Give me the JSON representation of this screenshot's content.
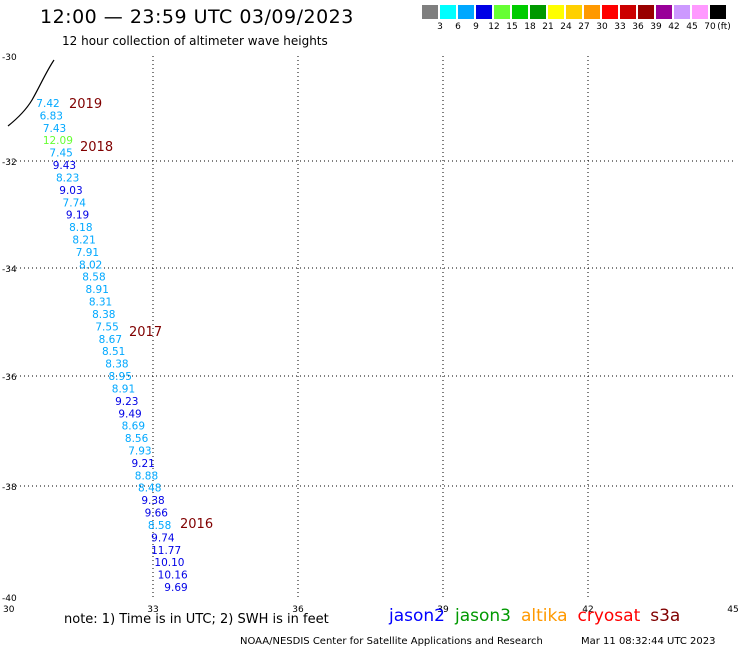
{
  "header": {
    "title": "12:00 — 23:59 UTC 03/09/2023",
    "subtitle": "12 hour collection of altimeter wave heights"
  },
  "legend": {
    "swatches": [
      {
        "color": "#7f7f7f",
        "label": "3"
      },
      {
        "color": "#00ffff",
        "label": "6"
      },
      {
        "color": "#00a8ff",
        "label": "9"
      },
      {
        "color": "#0000e6",
        "label": "12"
      },
      {
        "color": "#66ff33",
        "label": "15"
      },
      {
        "color": "#00cc00",
        "label": "18"
      },
      {
        "color": "#009900",
        "label": "21"
      },
      {
        "color": "#ffff00",
        "label": "24"
      },
      {
        "color": "#ffd000",
        "label": "27"
      },
      {
        "color": "#ff9900",
        "label": "30"
      },
      {
        "color": "#ff0000",
        "label": "33"
      },
      {
        "color": "#cc0000",
        "label": "36"
      },
      {
        "color": "#990000",
        "label": "39"
      },
      {
        "color": "#990099",
        "label": "42"
      },
      {
        "color": "#cc99ff",
        "label": "45"
      },
      {
        "color": "#ff99ff",
        "label": "70"
      },
      {
        "color": "#000000",
        "label": ""
      }
    ],
    "unit": "(ft)"
  },
  "map": {
    "x_ticks": [
      "30",
      "33",
      "36",
      "39",
      "42",
      "45"
    ],
    "y_ticks": [
      "-30",
      "-32",
      "-34",
      "-36",
      "-38",
      "-40"
    ],
    "year_labels": [
      "2019",
      "2018",
      "2017",
      "2016"
    ],
    "year_color": "#800000",
    "wave_heights": [
      {
        "label": "7.42",
        "color": "#00a8ff"
      },
      {
        "label": "6.83",
        "color": "#00a8ff"
      },
      {
        "label": "7.43",
        "color": "#00a8ff"
      },
      {
        "label": "12.09",
        "color": "#66ff33"
      },
      {
        "label": "7.45",
        "color": "#00a8ff"
      },
      {
        "label": "9.43",
        "color": "#0000e6"
      },
      {
        "label": "8.23",
        "color": "#00a8ff"
      },
      {
        "label": "9.03",
        "color": "#0000e6"
      },
      {
        "label": "7.74",
        "color": "#00a8ff"
      },
      {
        "label": "9.19",
        "color": "#0000e6"
      },
      {
        "label": "8.18",
        "color": "#00a8ff"
      },
      {
        "label": "8.21",
        "color": "#00a8ff"
      },
      {
        "label": "7.91",
        "color": "#00a8ff"
      },
      {
        "label": "8.02",
        "color": "#00a8ff"
      },
      {
        "label": "8.58",
        "color": "#00a8ff"
      },
      {
        "label": "8.91",
        "color": "#00a8ff"
      },
      {
        "label": "8.31",
        "color": "#00a8ff"
      },
      {
        "label": "8.38",
        "color": "#00a8ff"
      },
      {
        "label": "7.55",
        "color": "#00a8ff"
      },
      {
        "label": "8.67",
        "color": "#00a8ff"
      },
      {
        "label": "8.51",
        "color": "#00a8ff"
      },
      {
        "label": "8.38",
        "color": "#00a8ff"
      },
      {
        "label": "8.95",
        "color": "#00a8ff"
      },
      {
        "label": "8.91",
        "color": "#00a8ff"
      },
      {
        "label": "9.23",
        "color": "#0000e6"
      },
      {
        "label": "9.49",
        "color": "#0000e6"
      },
      {
        "label": "8.69",
        "color": "#00a8ff"
      },
      {
        "label": "8.56",
        "color": "#00a8ff"
      },
      {
        "label": "7.93",
        "color": "#00a8ff"
      },
      {
        "label": "9.21",
        "color": "#0000e6"
      },
      {
        "label": "8.88",
        "color": "#00a8ff"
      },
      {
        "label": "8.48",
        "color": "#00a8ff"
      },
      {
        "label": "9.38",
        "color": "#0000e6"
      },
      {
        "label": "9.66",
        "color": "#0000e6"
      },
      {
        "label": "8.58",
        "color": "#00a8ff"
      },
      {
        "label": "9.74",
        "color": "#0000e6"
      },
      {
        "label": "11.77",
        "color": "#0000e6"
      },
      {
        "label": "10.10",
        "color": "#0000e6"
      },
      {
        "label": "10.16",
        "color": "#0000e6"
      },
      {
        "label": "9.69",
        "color": "#0000e6"
      }
    ]
  },
  "footer": {
    "note": "note:  1) Time is in UTC;  2) SWH is in feet",
    "satellites": [
      {
        "name": "jason2",
        "color": "#0000ff"
      },
      {
        "name": "jason3",
        "color": "#009900"
      },
      {
        "name": "altika",
        "color": "#ff9900"
      },
      {
        "name": "cryosat",
        "color": "#ff0000"
      },
      {
        "name": "s3a",
        "color": "#800000"
      }
    ],
    "credit": "NOAA/NESDIS Center for Satellite Applications and Research",
    "timestamp": "Mar 11 08:32:44 UTC 2023"
  }
}
